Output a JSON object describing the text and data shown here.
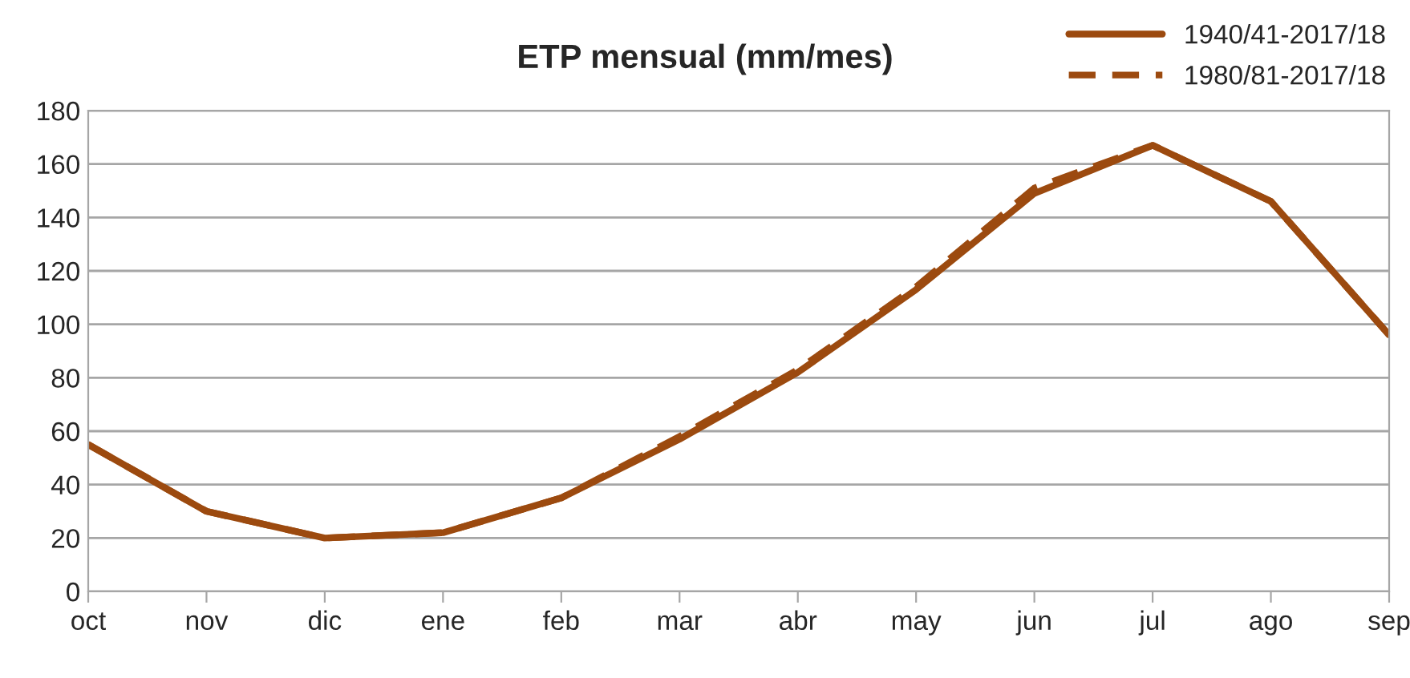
{
  "chart_data": {
    "type": "line",
    "title": "ETP mensual (mm/mes)",
    "categories": [
      "oct",
      "nov",
      "dic",
      "ene",
      "feb",
      "mar",
      "abr",
      "may",
      "jun",
      "jul",
      "ago",
      "sep"
    ],
    "series": [
      {
        "name": "1940/41-2017/18",
        "color": "#9c4a0f",
        "line_style": "solid",
        "values": [
          55,
          30,
          20,
          22,
          35,
          57,
          82,
          113,
          149,
          167,
          146,
          96
        ]
      },
      {
        "name": "1980/81-2017/18",
        "color": "#9c4a0f",
        "line_style": "dashed",
        "values": [
          55,
          30,
          20,
          22,
          35,
          58,
          83,
          114,
          151,
          167,
          146,
          96
        ]
      }
    ],
    "ylim": [
      0,
      180
    ],
    "yticks": [
      0,
      20,
      40,
      60,
      80,
      100,
      120,
      140,
      160,
      180
    ],
    "grid": "y",
    "legend": "top right",
    "marker": "none"
  }
}
